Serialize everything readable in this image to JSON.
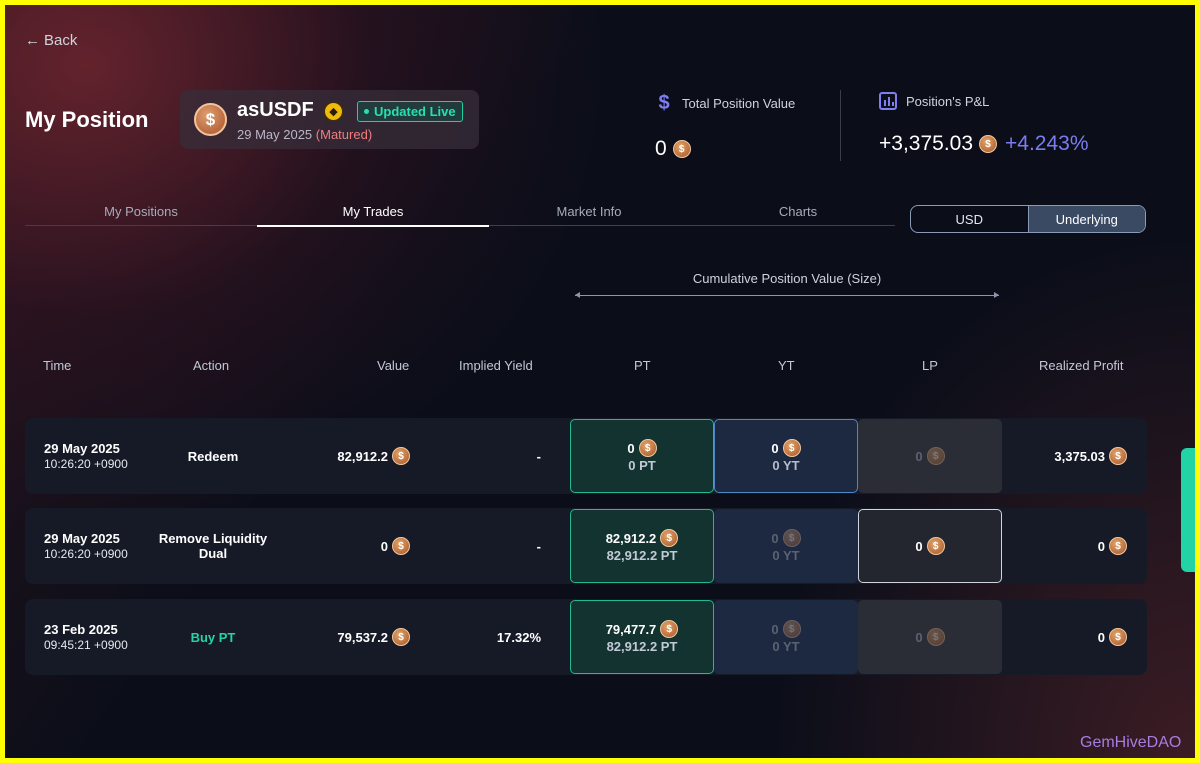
{
  "nav": {
    "back_label": "Back"
  },
  "page": {
    "title": "My Position"
  },
  "asset": {
    "name": "asUSDF",
    "icon": "dollar-coin-icon",
    "chain_icon": "bnb-chain-icon",
    "live_badge": "Updated Live",
    "maturity_date": "29 May 2025",
    "maturity_status": "(Matured)"
  },
  "stats": {
    "total_value": {
      "label": "Total Position Value",
      "value": "0",
      "icon": "dollar-icon"
    },
    "pnl": {
      "label": "Position's P&L",
      "value": "+3,375.03",
      "percent": "+4.243%",
      "icon": "bar-chart-icon"
    }
  },
  "tabs": [
    {
      "label": "My Positions",
      "active": false
    },
    {
      "label": "My Trades",
      "active": true
    },
    {
      "label": "Market Info",
      "active": false
    },
    {
      "label": "Charts",
      "active": false
    }
  ],
  "unit_toggle": {
    "options": [
      "USD",
      "Underlying"
    ],
    "selected": "Underlying"
  },
  "table": {
    "group_header": "Cumulative Position Value (Size)",
    "columns": [
      "Time",
      "Action",
      "Value",
      "Implied Yield",
      "PT",
      "YT",
      "LP",
      "Realized Profit"
    ],
    "rows": [
      {
        "date": "29 May 2025",
        "time": "10:26:20 +0900",
        "action": "Redeem",
        "value": "82,912.2",
        "implied_yield": "-",
        "pt_value": "0",
        "pt_size": "0 PT",
        "yt_value": "0",
        "yt_size": "0 YT",
        "lp_value": "0",
        "realized_profit": "3,375.03"
      },
      {
        "date": "29 May 2025",
        "time": "10:26:20 +0900",
        "action": "Remove Liquidity Dual",
        "value": "0",
        "implied_yield": "-",
        "pt_value": "82,912.2",
        "pt_size": "82,912.2 PT",
        "yt_value": "0",
        "yt_size": "0 YT",
        "lp_value": "0",
        "realized_profit": "0"
      },
      {
        "date": "23 Feb 2025",
        "time": "09:45:21 +0900",
        "action": "Buy PT",
        "value": "79,537.2",
        "implied_yield": "17.32%",
        "pt_value": "79,477.7",
        "pt_size": "82,912.2 PT",
        "yt_value": "0",
        "yt_size": "0 YT",
        "lp_value": "0",
        "realized_profit": "0"
      }
    ]
  },
  "watermark": "GemHiveDAO",
  "colors": {
    "accent_green": "#27d3a6",
    "accent_purple": "#7b7cf0",
    "matured_red": "#f07e7e",
    "frame_yellow": "#ffff00"
  }
}
